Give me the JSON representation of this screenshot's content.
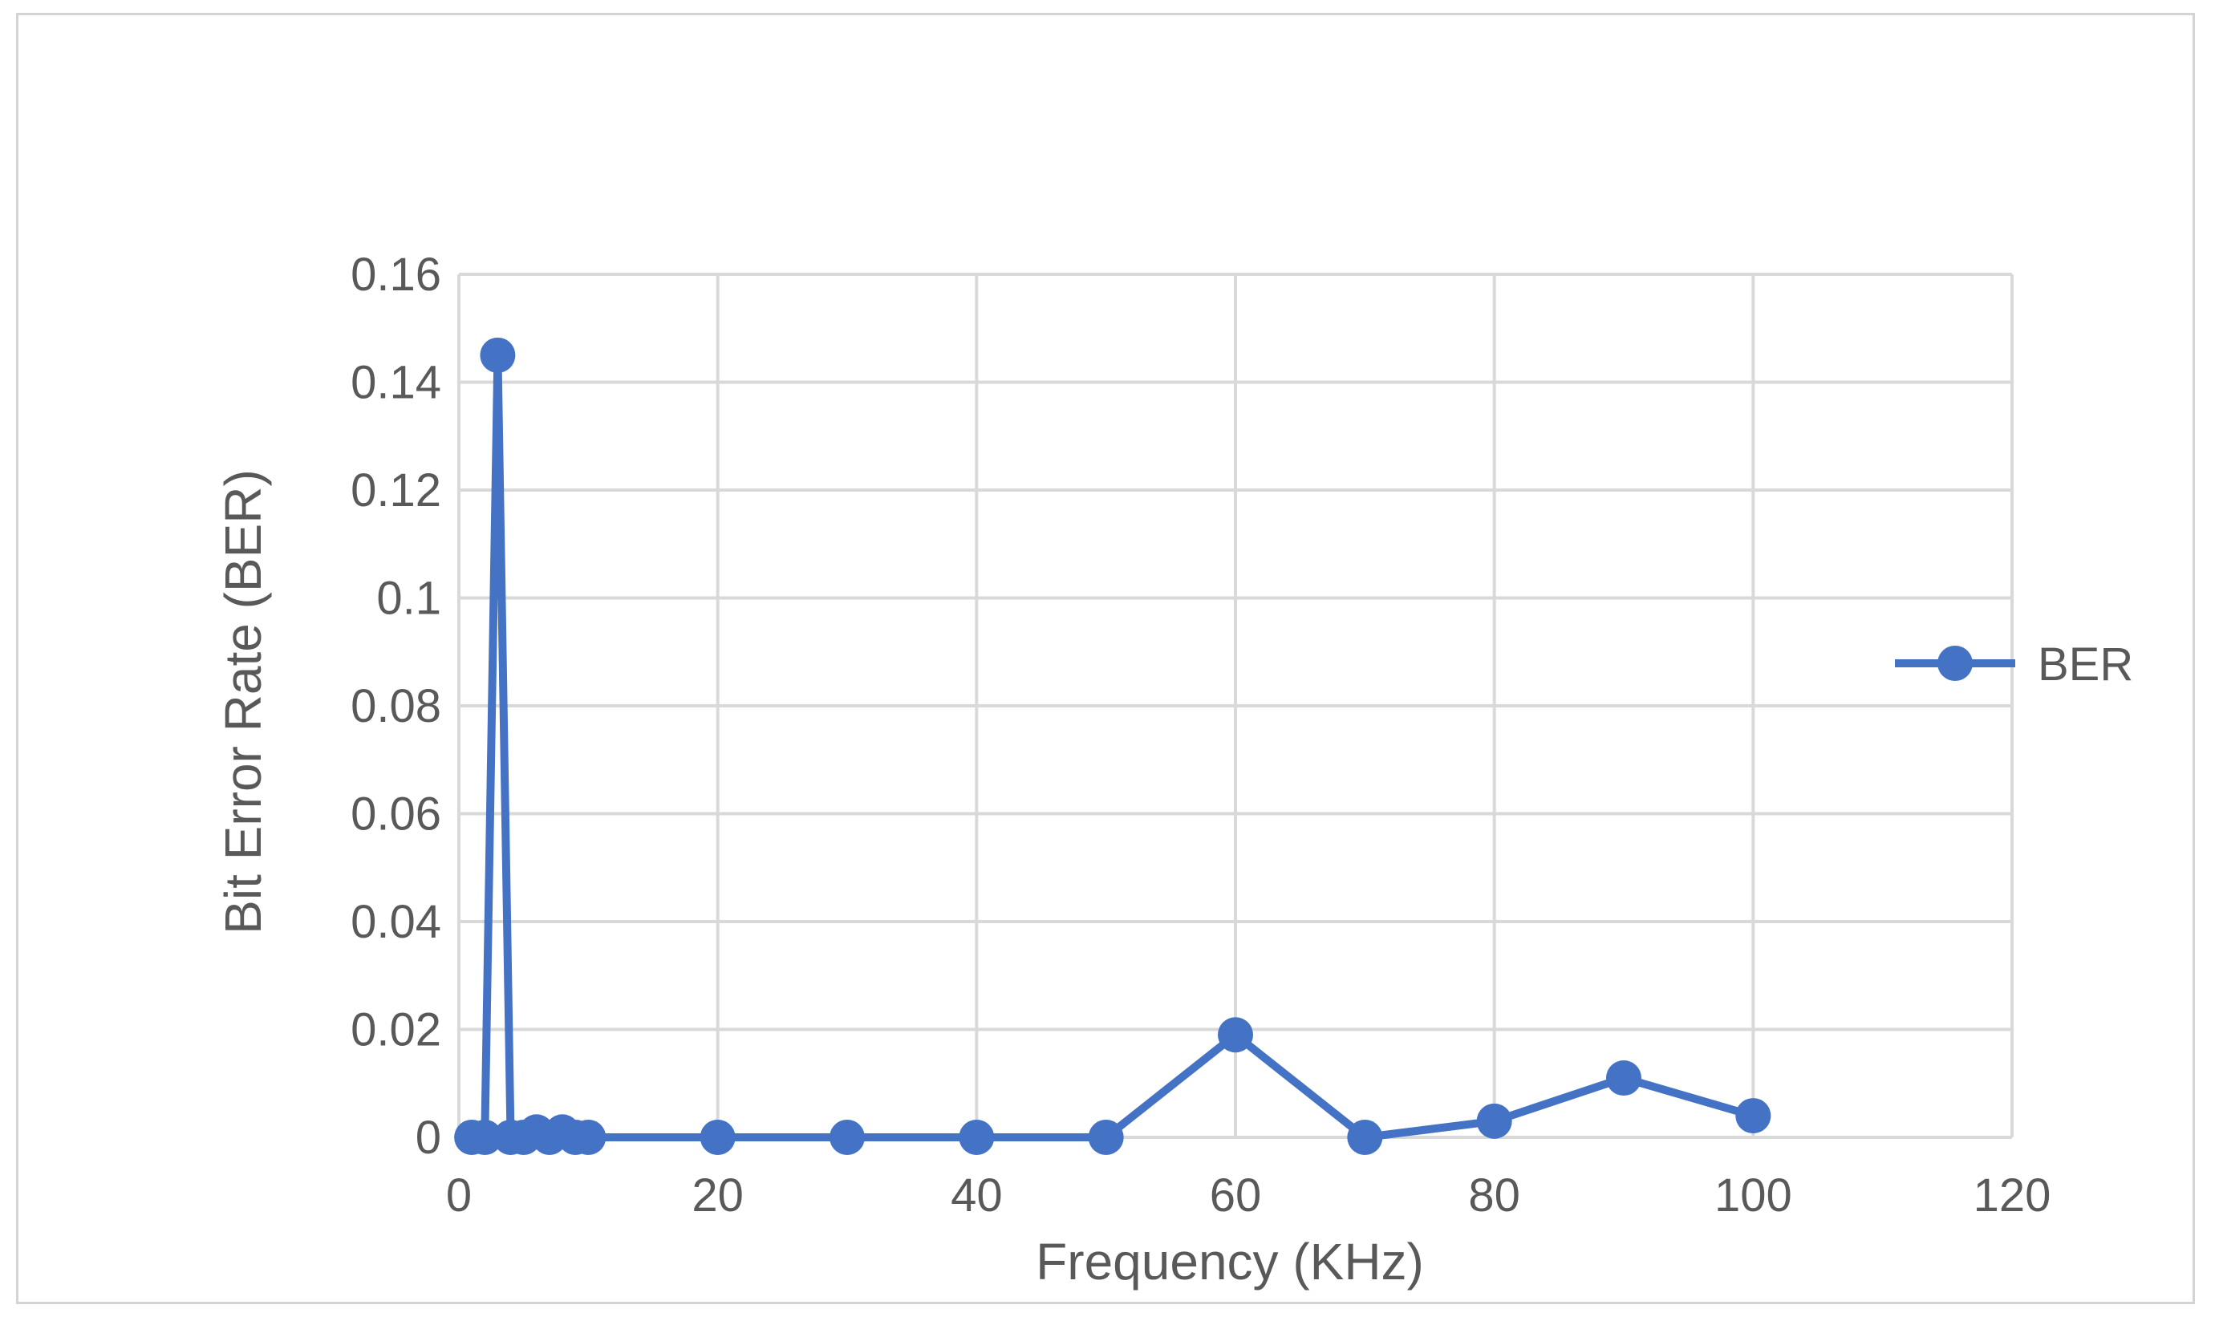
{
  "chart_data": {
    "type": "line",
    "title": "",
    "xlabel": "Frequency (KHz)",
    "ylabel": "Bit Error Rate (BER)",
    "xlim": [
      0,
      120
    ],
    "ylim": [
      0,
      0.16
    ],
    "x_ticks": [
      "0",
      "20",
      "40",
      "60",
      "80",
      "100",
      "120"
    ],
    "y_ticks": [
      "0",
      "0.02",
      "0.04",
      "0.06",
      "0.08",
      "0.1",
      "0.12",
      "0.14",
      "0.16"
    ],
    "grid": true,
    "legend_position": "right",
    "series": [
      {
        "name": "BER",
        "color": "#4472c4",
        "marker": "circle",
        "x": [
          1,
          2,
          3,
          4,
          5,
          6,
          7,
          8,
          9,
          10,
          20,
          30,
          40,
          50,
          60,
          70,
          80,
          90,
          100
        ],
        "values": [
          0,
          0,
          0.145,
          0,
          0,
          0.001,
          0,
          0.001,
          0,
          0,
          0,
          0,
          0,
          0,
          0.019,
          0,
          0.003,
          0.011,
          0.004
        ]
      }
    ]
  }
}
